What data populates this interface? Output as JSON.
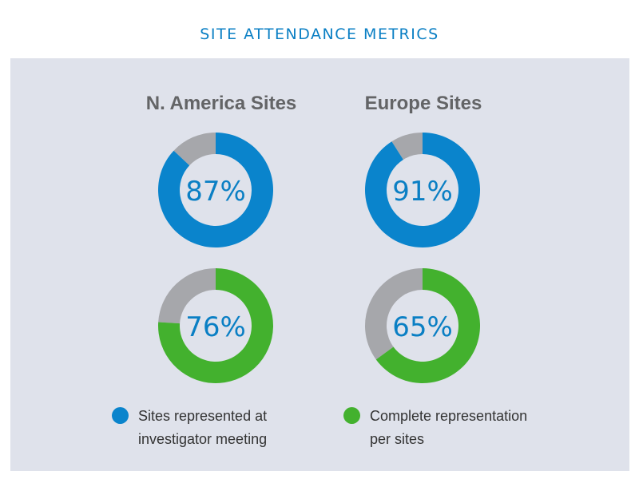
{
  "title": "SITE ATTENDANCE METRICS",
  "colors": {
    "blue": "#0a84cc",
    "green": "#43b12e",
    "gray": "#a6a7ab",
    "inner": "#dfe2eb",
    "label": "#0a7fc4",
    "panel": "#dfe2eb"
  },
  "columns": [
    "N. America Sites",
    "Europe Sites"
  ],
  "legend": [
    {
      "lines": [
        "Sites represented at",
        "investigator meeting"
      ],
      "color": "blue"
    },
    {
      "lines": [
        "Complete representation",
        "per sites"
      ],
      "color": "green"
    }
  ],
  "chart_data": {
    "type": "pie",
    "variant": "donut",
    "title": "SITE ATTENDANCE METRICS",
    "categories": [
      "N. America Sites",
      "Europe Sites"
    ],
    "series": [
      {
        "name": "Sites represented at investigator meeting",
        "values": [
          87,
          91
        ],
        "labels": [
          "87%",
          "91%"
        ],
        "color": "blue"
      },
      {
        "name": "Complete representation per sites",
        "values": [
          76,
          65
        ],
        "labels": [
          "76%",
          "65%"
        ],
        "color": "green"
      }
    ],
    "unit": "%",
    "legend_position": "bottom"
  }
}
